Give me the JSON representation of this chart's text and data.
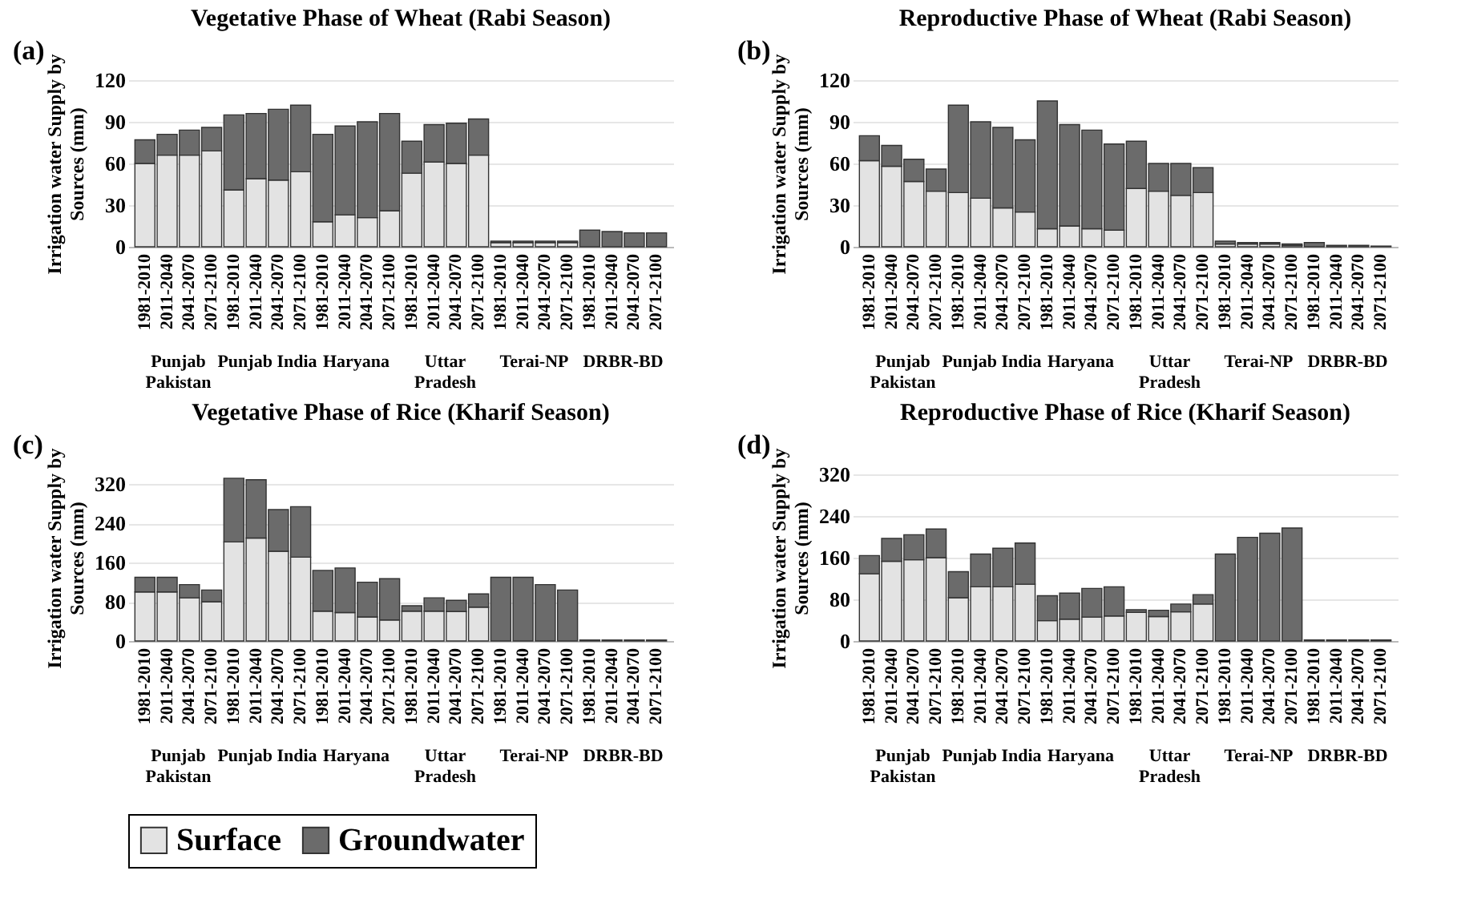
{
  "chart_data": [
    {
      "type": "bar",
      "stacked": true,
      "title": "Vegetative Phase of Wheat (Rabi Season)",
      "ylabel": "Irrigation water Supply by Sources (mm)",
      "categories": [
        "1981-2010",
        "2011-2040",
        "2041-2070",
        "2071-2100",
        "1981-2010",
        "2011-2040",
        "2041-2070",
        "2071-2100",
        "1981-2010",
        "2011-2040",
        "2041-2070",
        "2071-2100",
        "1981-2010",
        "2011-2040",
        "2041-2070",
        "2071-2100",
        "1981-2010",
        "2011-2040",
        "2041-2070",
        "2071-2100",
        "1981-2010",
        "2011-2040",
        "2041-2070",
        "2071-2100"
      ],
      "annotations": [
        "(a)",
        "Punjab Pakistan",
        "Punjab India",
        "Haryana",
        "Uttar Pradesh",
        "Terai-NP",
        "DRBR-BD"
      ],
      "series": [
        {
          "name": "Surface",
          "color": "#e3e3e3",
          "values": [
            60,
            66,
            66,
            69,
            41,
            49,
            48,
            54,
            18,
            23,
            21,
            26,
            53,
            61,
            60,
            66,
            3,
            3,
            3,
            3,
            0,
            0,
            0,
            0
          ]
        },
        {
          "name": "Groundwater",
          "color": "#6b6b6b",
          "values": [
            17,
            15,
            18,
            17,
            54,
            47,
            51,
            48,
            63,
            64,
            69,
            70,
            23,
            27,
            29,
            26,
            1,
            1,
            1,
            1,
            12,
            11,
            10,
            10
          ]
        }
      ],
      "ylim": [
        0,
        120
      ],
      "yticks": [
        0,
        30,
        60,
        90,
        120
      ],
      "grid": "y",
      "legend": "bottom"
    },
    {
      "type": "bar",
      "stacked": true,
      "title": "Reproductive Phase of Wheat (Rabi Season)",
      "ylabel": "Irrigation water Supply by Sources (mm)",
      "categories": [
        "1981-2010",
        "2011-2040",
        "2041-2070",
        "2071-2100",
        "1981-2010",
        "2011-2040",
        "2041-2070",
        "2071-2100",
        "1981-2010",
        "2011-2040",
        "2041-2070",
        "2071-2100",
        "1981-2010",
        "2011-2040",
        "2041-2070",
        "2071-2100",
        "1981-2010",
        "2011-2040",
        "2041-2070",
        "2071-2100",
        "1981-2010",
        "2011-2040",
        "2041-2070",
        "2071-2100"
      ],
      "annotations": [
        "(b)",
        "Punjab Pakistan",
        "Punjab India",
        "Haryana",
        "Uttar Pradesh",
        "Terai-NP",
        "DRBR-BD"
      ],
      "series": [
        {
          "name": "Surface",
          "color": "#e3e3e3",
          "values": [
            62,
            58,
            47,
            40,
            39,
            35,
            28,
            25,
            13,
            15,
            13,
            12,
            42,
            40,
            37,
            39,
            2,
            2,
            2,
            1,
            0,
            0,
            0,
            0
          ]
        },
        {
          "name": "Groundwater",
          "color": "#6b6b6b",
          "values": [
            18,
            15,
            16,
            16,
            63,
            55,
            58,
            52,
            92,
            73,
            71,
            62,
            34,
            20,
            23,
            18,
            2,
            1,
            1,
            1,
            3,
            1,
            1,
            0.5
          ]
        }
      ],
      "ylim": [
        0,
        120
      ],
      "yticks": [
        0,
        30,
        60,
        90,
        120
      ],
      "grid": "y"
    },
    {
      "type": "bar",
      "stacked": true,
      "title": "Vegetative Phase of Rice (Kharif Season)",
      "ylabel": "Irrigation water Supply by Sources (mm)",
      "categories": [
        "1981-2010",
        "2011-2040",
        "2041-2070",
        "2071-2100",
        "1981-2010",
        "2011-2040",
        "2041-2070",
        "2071-2100",
        "1981-2010",
        "2011-2040",
        "2041-2070",
        "2071-2100",
        "1981-2010",
        "2011-2040",
        "2041-2070",
        "2071-2100",
        "1981-2010",
        "2011-2040",
        "2041-2070",
        "2071-2100",
        "1981-2010",
        "2011-2040",
        "2041-2070",
        "2071-2100"
      ],
      "annotations": [
        "(c)",
        "Punjab Pakistan",
        "Punjab India",
        "Haryana",
        "Uttar Pradesh",
        "Terai-NP",
        "DRBR-BD"
      ],
      "series": [
        {
          "name": "Surface",
          "color": "#e3e3e3",
          "values": [
            100,
            100,
            88,
            80,
            202,
            210,
            183,
            171,
            61,
            58,
            49,
            43,
            61,
            61,
            60,
            69,
            0,
            0,
            0,
            0,
            0,
            0,
            0,
            0
          ]
        },
        {
          "name": "Groundwater",
          "color": "#6b6b6b",
          "values": [
            30,
            30,
            27,
            24,
            130,
            119,
            85,
            103,
            83,
            91,
            71,
            84,
            11,
            27,
            23,
            27,
            130,
            130,
            115,
            104,
            2,
            2,
            2,
            2
          ]
        }
      ],
      "ylim": [
        0,
        340
      ],
      "yticks": [
        0,
        80,
        160,
        240,
        320
      ],
      "grid": "y"
    },
    {
      "type": "bar",
      "stacked": true,
      "title": "Reproductive Phase of Rice (Kharif Season)",
      "ylabel": "Irrigation water Supply by Sources (mm)",
      "categories": [
        "1981-2010",
        "2011-2040",
        "2041-2070",
        "2071-2100",
        "1981-2010",
        "2011-2040",
        "2041-2070",
        "2071-2100",
        "1981-2010",
        "2011-2040",
        "2041-2070",
        "2071-2100",
        "1981-2010",
        "2011-2040",
        "2041-2070",
        "2071-2100",
        "1981-2010",
        "2011-2040",
        "2041-2070",
        "2071-2100",
        "1981-2010",
        "2011-2040",
        "2041-2070",
        "2071-2100"
      ],
      "annotations": [
        "(d)",
        "Punjab Pakistan",
        "Punjab India",
        "Haryana",
        "Uttar Pradesh",
        "Terai-NP",
        "DRBR-BD"
      ],
      "series": [
        {
          "name": "Surface",
          "color": "#e3e3e3",
          "values": [
            129,
            153,
            156,
            160,
            83,
            104,
            104,
            109,
            39,
            42,
            46,
            48,
            55,
            47,
            56,
            71,
            0,
            0,
            0,
            0,
            0,
            0,
            0,
            0
          ]
        },
        {
          "name": "Groundwater",
          "color": "#6b6b6b",
          "values": [
            35,
            44,
            48,
            55,
            50,
            63,
            74,
            79,
            48,
            50,
            55,
            56,
            5,
            12,
            15,
            18,
            167,
            199,
            207,
            217,
            2,
            2,
            2,
            2
          ]
        }
      ],
      "ylim": [
        0,
        320
      ],
      "yticks": [
        0,
        80,
        160,
        240,
        320
      ],
      "grid": "y"
    }
  ]
}
